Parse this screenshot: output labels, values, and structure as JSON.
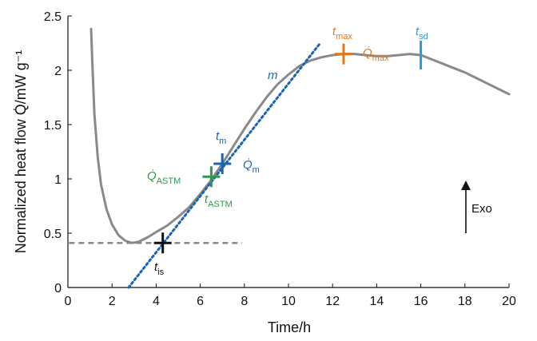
{
  "chart_data": {
    "type": "line",
    "xlabel": "Time/h",
    "ylabel": "Normalized heat flow Q̇/mW g⁻¹",
    "xlim": [
      0,
      20
    ],
    "ylim": [
      0,
      2.5
    ],
    "x_ticks": [
      0,
      2,
      4,
      6,
      8,
      10,
      12,
      14,
      16,
      18,
      20
    ],
    "y_ticks": [
      0,
      0.5,
      1,
      1.5,
      2,
      2.5
    ],
    "grid": false,
    "series": [
      {
        "color": "#8a8a8a",
        "points": [
          [
            1.05,
            2.38
          ],
          [
            1.1,
            2.1
          ],
          [
            1.2,
            1.6
          ],
          [
            1.35,
            1.2
          ],
          [
            1.5,
            0.95
          ],
          [
            1.75,
            0.72
          ],
          [
            2.0,
            0.58
          ],
          [
            2.3,
            0.48
          ],
          [
            2.6,
            0.43
          ],
          [
            2.9,
            0.41
          ],
          [
            3.2,
            0.42
          ],
          [
            3.6,
            0.46
          ],
          [
            4.0,
            0.51
          ],
          [
            4.5,
            0.57
          ],
          [
            5.0,
            0.65
          ],
          [
            5.5,
            0.74
          ],
          [
            6.0,
            0.86
          ],
          [
            6.5,
            0.99
          ],
          [
            7.0,
            1.14
          ],
          [
            7.5,
            1.3
          ],
          [
            8.0,
            1.46
          ],
          [
            8.5,
            1.61
          ],
          [
            9.0,
            1.75
          ],
          [
            9.5,
            1.87
          ],
          [
            10.0,
            1.96
          ],
          [
            10.5,
            2.04
          ],
          [
            11.0,
            2.09
          ],
          [
            11.5,
            2.12
          ],
          [
            12.0,
            2.14
          ],
          [
            12.5,
            2.15
          ],
          [
            13.0,
            2.15
          ],
          [
            13.5,
            2.14
          ],
          [
            14.0,
            2.13
          ],
          [
            14.5,
            2.13
          ],
          [
            15.0,
            2.14
          ],
          [
            15.5,
            2.15
          ],
          [
            16.0,
            2.14
          ],
          [
            16.5,
            2.1
          ],
          [
            17.0,
            2.06
          ],
          [
            17.5,
            2.02
          ],
          [
            18.0,
            1.98
          ],
          [
            18.5,
            1.93
          ],
          [
            19.0,
            1.88
          ],
          [
            19.5,
            1.83
          ],
          [
            20.0,
            1.78
          ]
        ]
      }
    ],
    "baseline": {
      "x1": 0.05,
      "x2": 7.9,
      "y": 0.41,
      "color": "#8a8a8a"
    },
    "tangent": {
      "label": "m",
      "x1": 2.75,
      "y1": 0.0,
      "x2": 11.4,
      "y2": 2.24,
      "color": "#1a64b4"
    },
    "markers": [
      {
        "id": "ts",
        "x": 4.3,
        "y": 0.41,
        "type": "cross",
        "color": "#111111"
      },
      {
        "id": "tastm",
        "x": 6.5,
        "y": 1.02,
        "type": "cross",
        "color": "#2e9a4a"
      },
      {
        "id": "tm",
        "x": 7.0,
        "y": 1.14,
        "type": "cross",
        "color": "#1a64b4"
      },
      {
        "id": "tmax",
        "x": 12.5,
        "y": 2.15,
        "type": "cross",
        "color": "#e07820"
      },
      {
        "id": "tsd",
        "x": 16.0,
        "y": 2.14,
        "type": "vline",
        "color": "#2a9ad4"
      }
    ],
    "labels": {
      "ts": {
        "main": "t",
        "sub": "is"
      },
      "tm": {
        "main": "t",
        "sub": "m"
      },
      "Qm": {
        "main": "Q̇",
        "sub": "m"
      },
      "Qastm": {
        "main": "Q̇",
        "sub": "ASTM"
      },
      "tastm": {
        "main": "t",
        "sub": "ASTM"
      },
      "tmax": {
        "main": "t",
        "sub": "max"
      },
      "Qmax": {
        "main": "Q̇",
        "sub": "max"
      },
      "tsd": {
        "main": "t",
        "sub": "sd"
      },
      "m": "m",
      "exo": "Exo"
    }
  }
}
